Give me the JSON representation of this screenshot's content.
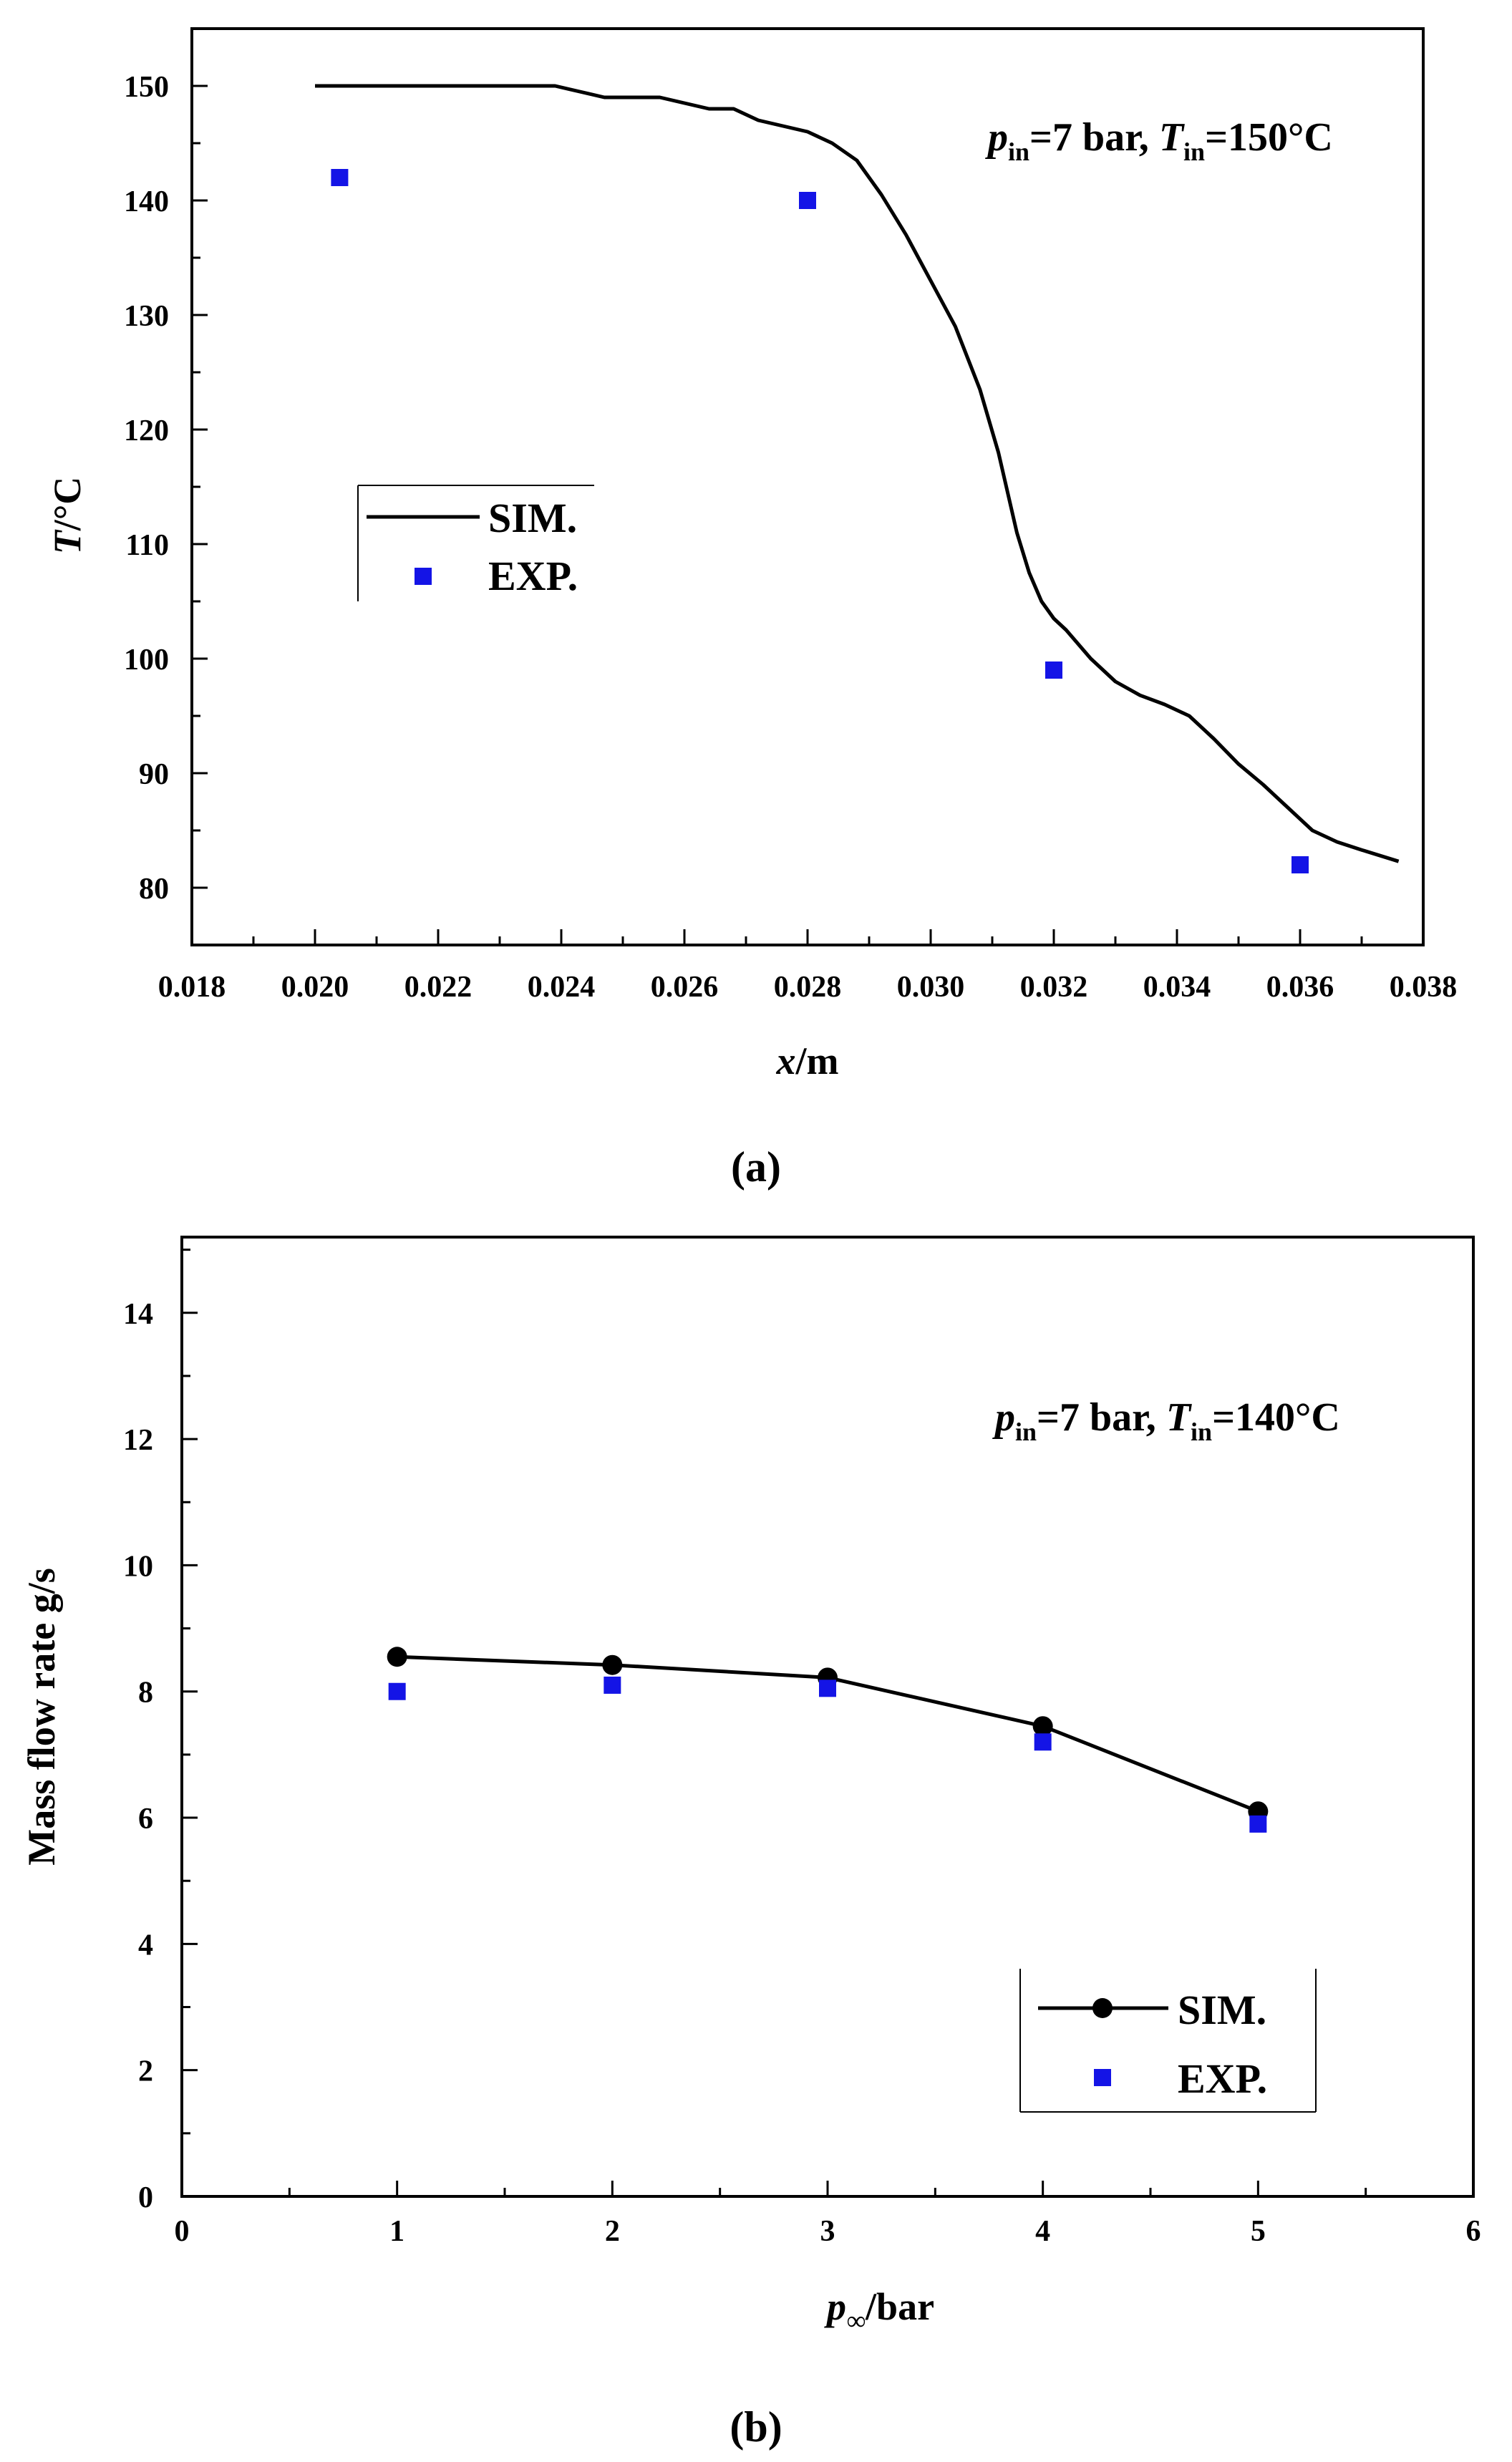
{
  "colors": {
    "sim_line": "#000000",
    "exp_marker": "#1414e6",
    "axis": "#000000"
  },
  "chart_data": [
    {
      "type": "line",
      "panel": "a",
      "caption": {
        "open": "(",
        "letter": "a",
        "close": ")"
      },
      "xlabel": {
        "var": "x",
        "rest": "/m"
      },
      "ylabel": {
        "var": "T",
        "rest": "/°C"
      },
      "xlim": [
        0.018,
        0.038
      ],
      "ylim": [
        75,
        155
      ],
      "xticks": [
        "0.018",
        "0.020",
        "0.022",
        "0.024",
        "0.026",
        "0.028",
        "0.030",
        "0.032",
        "0.034",
        "0.036",
        "0.038"
      ],
      "yticks": [
        "80",
        "90",
        "100",
        "110",
        "120",
        "130",
        "140",
        "150"
      ],
      "annotation": {
        "p": "p",
        "sub_p": "in",
        "p_rest": "=7 bar, ",
        "t": "T",
        "sub_t": "in",
        "t_rest": "=150°C"
      },
      "legend": {
        "sim": "SIM.",
        "exp": "EXP.",
        "position": "middle-left"
      },
      "series": [
        {
          "name": "SIM.",
          "style": "line",
          "x": [
            0.02,
            0.021,
            0.022,
            0.023,
            0.0239,
            0.0243,
            0.0247,
            0.0252,
            0.0256,
            0.026,
            0.0264,
            0.0268,
            0.0272,
            0.0276,
            0.028,
            0.0284,
            0.0288,
            0.0292,
            0.0296,
            0.03,
            0.0304,
            0.0308,
            0.0311,
            0.0314,
            0.0316,
            0.0318,
            0.032,
            0.0322,
            0.0326,
            0.033,
            0.0334,
            0.0338,
            0.0342,
            0.0346,
            0.035,
            0.0354,
            0.0358,
            0.0362,
            0.0366,
            0.037,
            0.0376
          ],
          "y": [
            150,
            150,
            150,
            150,
            150,
            149.5,
            149,
            149,
            149,
            148.5,
            148,
            148,
            147,
            146.5,
            146,
            145,
            143.5,
            140.5,
            137,
            133,
            129,
            123.5,
            118,
            111,
            107.5,
            105,
            103.5,
            102.5,
            100,
            98,
            96.8,
            96,
            95,
            93,
            90.8,
            89,
            87,
            85,
            84,
            83.3,
            82.3
          ]
        },
        {
          "name": "EXP.",
          "style": "marker-square",
          "x": [
            0.0204,
            0.028,
            0.032,
            0.036
          ],
          "y": [
            142,
            140,
            99,
            82
          ]
        }
      ]
    },
    {
      "type": "line",
      "panel": "b",
      "caption": {
        "open": "(",
        "letter": "b",
        "close": ")"
      },
      "xlabel": {
        "var": "p",
        "sub": "∞",
        "rest": "/bar"
      },
      "ylabel": {
        "text": "Mass flow rate g/s"
      },
      "xlim": [
        0,
        6
      ],
      "ylim": [
        0,
        15.2
      ],
      "xticks": [
        "0",
        "1",
        "2",
        "3",
        "4",
        "5",
        "6"
      ],
      "yticks": [
        "0",
        "2",
        "4",
        "6",
        "8",
        "10",
        "12",
        "14"
      ],
      "annotation": {
        "p": "p",
        "sub_p": "in",
        "p_rest": "=7 bar, ",
        "t": "T",
        "sub_t": "in",
        "t_rest": "=140°C"
      },
      "legend": {
        "sim": "SIM.",
        "exp": "EXP.",
        "position": "bottom-right"
      },
      "series": [
        {
          "name": "SIM.",
          "style": "line-circle",
          "x": [
            1,
            2,
            3,
            4,
            5
          ],
          "y": [
            8.55,
            8.42,
            8.22,
            7.45,
            6.1
          ]
        },
        {
          "name": "EXP.",
          "style": "marker-square",
          "x": [
            1,
            2,
            3,
            4,
            5
          ],
          "y": [
            8.0,
            8.1,
            8.05,
            7.2,
            5.9
          ]
        }
      ]
    }
  ]
}
